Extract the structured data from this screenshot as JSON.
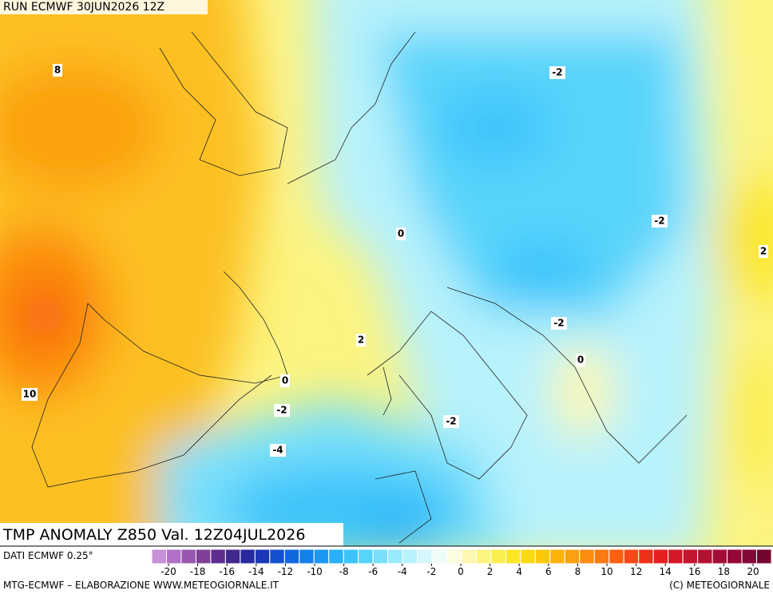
{
  "run_label": "RUN ECMWF 30JUN2026 12Z",
  "title": "TMP ANOMALY Z850 Val. 12Z04JUL2026",
  "source": "DATI ECMWF 0.25°",
  "footer_left": "MTG-ECMWF – ELABORAZIONE WWW.METEOGIORNALE.IT",
  "footer_right": "(C) METEOGIORNALE",
  "contour_labels": [
    8,
    -2,
    -2,
    0,
    2,
    2,
    -2,
    0,
    0,
    10,
    -2,
    -2,
    -4
  ],
  "colorbar": {
    "colors": [
      "#c890d8",
      "#b070c8",
      "#9858b0",
      "#804098",
      "#602c90",
      "#40288c",
      "#2828a0",
      "#1c38b8",
      "#1450d0",
      "#1068e0",
      "#1480ec",
      "#1c98f4",
      "#28b0f8",
      "#3cc4fa",
      "#58d4fb",
      "#78e0fc",
      "#98eafc",
      "#b8f2fc",
      "#d6f8fc",
      "#eefcfa",
      "#fcfce0",
      "#fcf8b0",
      "#fcf480",
      "#fcee50",
      "#fce628",
      "#fcd810",
      "#fcc808",
      "#fcb408",
      "#fca010",
      "#fc8c10",
      "#fc7810",
      "#fc6010",
      "#f84818",
      "#f03018",
      "#e42020",
      "#d41828",
      "#c41430",
      "#b41034",
      "#a40c38",
      "#940838",
      "#840838",
      "#740430"
    ],
    "ticks": [
      -20,
      -18,
      -16,
      -14,
      -12,
      -10,
      -8,
      -6,
      -4,
      -2,
      0,
      2,
      4,
      6,
      8,
      10,
      12,
      14,
      16,
      18,
      20
    ]
  }
}
